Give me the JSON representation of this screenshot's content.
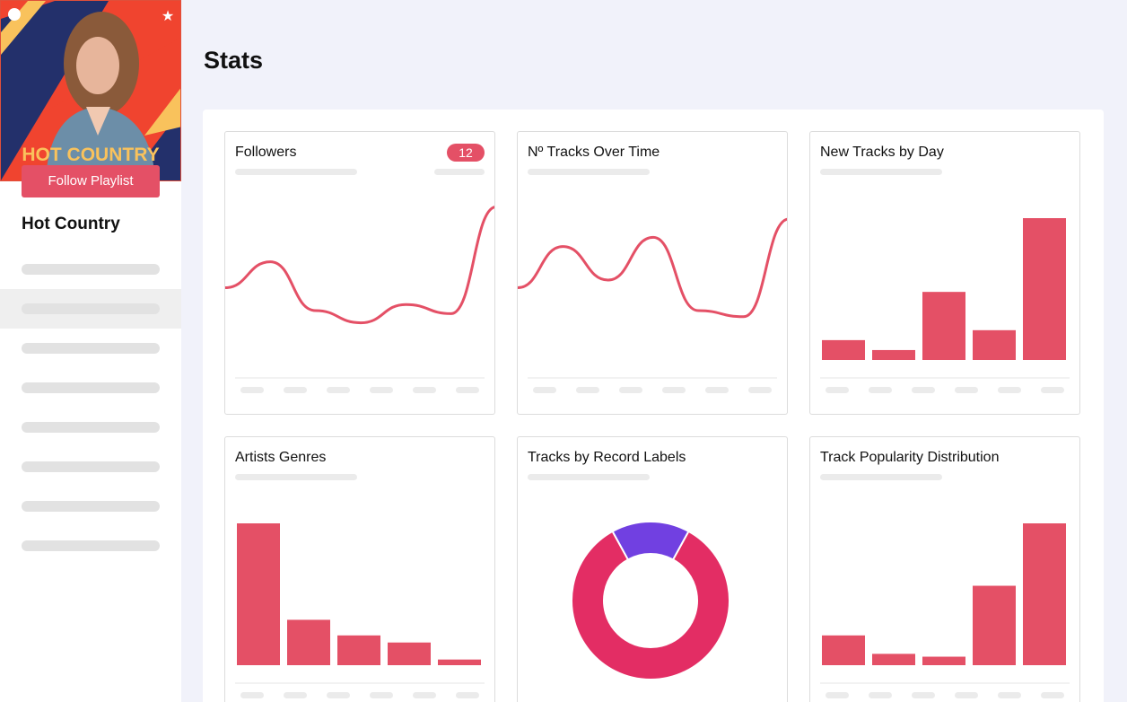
{
  "playlist": {
    "cover_text": "HOT COUNTRY",
    "follow_label": "Follow Playlist",
    "name": "Hot Country"
  },
  "page": {
    "title": "Stats"
  },
  "colors": {
    "accent": "#e45066",
    "donut_primary": "#e32d64",
    "donut_secondary": "#7140e1"
  },
  "cards": [
    {
      "title": "Followers",
      "badge": "12",
      "chart_data": {
        "type": "line",
        "y": [
          0.45,
          0.62,
          0.3,
          0.22,
          0.34,
          0.28,
          0.98
        ]
      }
    },
    {
      "title": "Nº Tracks Over Time",
      "chart_data": {
        "type": "line",
        "y": [
          0.45,
          0.72,
          0.5,
          0.78,
          0.3,
          0.26,
          0.9
        ]
      }
    },
    {
      "title": "New Tracks by Day",
      "chart_data": {
        "type": "bar",
        "values": [
          14,
          7,
          48,
          21,
          100
        ]
      }
    },
    {
      "title": "Artists Genres",
      "chart_data": {
        "type": "bar",
        "values": [
          100,
          32,
          21,
          16,
          4
        ]
      }
    },
    {
      "title": "Tracks by Record Labels",
      "chart_data": {
        "type": "pie",
        "values": [
          84,
          16
        ]
      }
    },
    {
      "title": "Track Popularity Distribution",
      "chart_data": {
        "type": "bar",
        "values": [
          21,
          8,
          6,
          56,
          100
        ]
      }
    }
  ]
}
